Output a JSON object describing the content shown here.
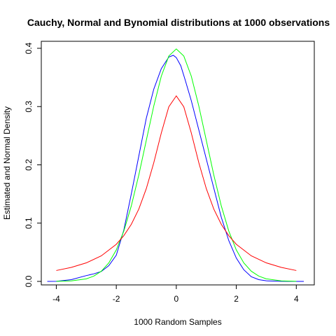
{
  "chart_data": {
    "type": "line",
    "title": "Cauchy, Normal and Bynomial distributions at 1000 observations",
    "xlabel": "1000 Random Samples",
    "ylabel": "Estimated and Normal Density",
    "xlim": [
      -4.5,
      4.6
    ],
    "ylim": [
      -0.006,
      0.412
    ],
    "xticks": [
      -4,
      -2,
      0,
      2,
      4
    ],
    "xtick_labels": [
      "-4",
      "-2",
      "0",
      "2",
      "4"
    ],
    "yticks": [
      0.0,
      0.1,
      0.2,
      0.3,
      0.4
    ],
    "ytick_labels": [
      "0.0",
      "0.1",
      "0.2",
      "0.3",
      "0.4"
    ],
    "grid": false,
    "legend": "none",
    "series": [
      {
        "color": "#0000ff",
        "x": [
          -4.3,
          -4.0,
          -3.5,
          -3.0,
          -2.75,
          -2.5,
          -2.25,
          -2.0,
          -1.75,
          -1.5,
          -1.25,
          -1.0,
          -0.75,
          -0.5,
          -0.25,
          -0.1,
          0.0,
          0.15,
          0.3,
          0.5,
          0.75,
          1.0,
          1.25,
          1.5,
          1.75,
          2.0,
          2.25,
          2.5,
          2.75,
          3.0,
          3.5,
          4.0,
          4.25
        ],
        "y": [
          0.0,
          0.0002,
          0.003,
          0.01,
          0.013,
          0.017,
          0.027,
          0.045,
          0.088,
          0.15,
          0.215,
          0.28,
          0.33,
          0.365,
          0.385,
          0.388,
          0.384,
          0.37,
          0.345,
          0.31,
          0.26,
          0.21,
          0.16,
          0.11,
          0.07,
          0.04,
          0.02,
          0.008,
          0.003,
          0.001,
          0.0002,
          0.0,
          0.0
        ]
      },
      {
        "color": "#00ff00",
        "x": [
          -4.0,
          -3.5,
          -3.0,
          -2.75,
          -2.5,
          -2.25,
          -2.0,
          -1.75,
          -1.5,
          -1.25,
          -1.0,
          -0.75,
          -0.5,
          -0.25,
          0.0,
          0.25,
          0.5,
          0.75,
          1.0,
          1.25,
          1.5,
          1.75,
          2.0,
          2.25,
          2.5,
          2.75,
          3.0,
          3.5,
          4.0
        ],
        "y": [
          0.0001,
          0.0009,
          0.0044,
          0.0091,
          0.0175,
          0.0317,
          0.054,
          0.0863,
          0.1295,
          0.1826,
          0.242,
          0.3011,
          0.3521,
          0.3867,
          0.3989,
          0.3867,
          0.3521,
          0.3011,
          0.242,
          0.1826,
          0.1295,
          0.0863,
          0.054,
          0.0317,
          0.0175,
          0.0091,
          0.0044,
          0.0009,
          0.0001
        ]
      },
      {
        "color": "#ff0000",
        "x": [
          -4.0,
          -3.5,
          -3.0,
          -2.5,
          -2.0,
          -1.75,
          -1.5,
          -1.25,
          -1.0,
          -0.75,
          -0.5,
          -0.25,
          0.0,
          0.25,
          0.5,
          0.75,
          1.0,
          1.25,
          1.5,
          1.75,
          2.0,
          2.5,
          3.0,
          3.5,
          4.0
        ],
        "y": [
          0.0187,
          0.024,
          0.0318,
          0.0439,
          0.0637,
          0.0785,
          0.0979,
          0.1241,
          0.1592,
          0.2037,
          0.2546,
          0.2996,
          0.3183,
          0.2996,
          0.2546,
          0.2037,
          0.1592,
          0.1241,
          0.0979,
          0.0785,
          0.0637,
          0.0439,
          0.0318,
          0.024,
          0.0187
        ]
      }
    ]
  }
}
